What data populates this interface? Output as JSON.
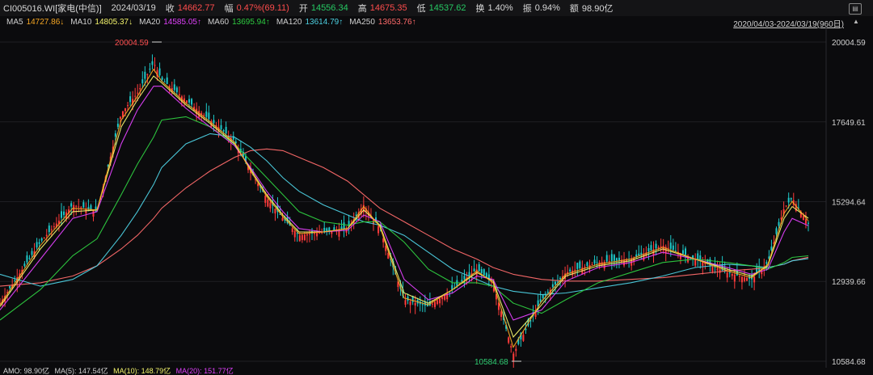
{
  "header": {
    "code": "CI005016.WI[家电(中信)]",
    "date": "2024/03/19",
    "close_label": "收",
    "close_value": "14662.77",
    "change_label": "幅",
    "change_value": "0.47%(69.11)",
    "open_label": "开",
    "open_value": "14556.34",
    "high_label": "高",
    "high_value": "14675.35",
    "low_label": "低",
    "low_value": "14537.62",
    "turnover_label": "换",
    "turnover_value": "1.40%",
    "amplitude_label": "振",
    "amplitude_value": "0.94%",
    "amount_label": "额",
    "amount_value": "98.90亿"
  },
  "ma_bar": {
    "ma5": {
      "label": "MA5",
      "value": "14727.86↓",
      "color": "#f5a623"
    },
    "ma10": {
      "label": "MA10",
      "value": "14805.37↓",
      "color": "#f2f26b"
    },
    "ma20": {
      "label": "MA20",
      "value": "14585.05↑",
      "color": "#e040fb"
    },
    "ma60": {
      "label": "MA60",
      "value": "13695.94↑",
      "color": "#2ecc40"
    },
    "ma120": {
      "label": "MA120",
      "value": "13614.79↑",
      "color": "#4dd0e1"
    },
    "ma250": {
      "label": "MA250",
      "value": "13653.76↑",
      "color": "#ff6b6b"
    },
    "range": "2020/04/03-2024/03/19(960日)"
  },
  "footer": {
    "amo": "AMO: 98.90亿",
    "ma5": "MA(5): 147.54亿",
    "ma10": "MA(10): 148.79亿",
    "ma20": "MA(20): 151.77亿"
  },
  "icons": {
    "top_right": "table-icon",
    "collapse": "collapse-arrow-icon"
  },
  "chart_data": {
    "type": "line",
    "title": "",
    "x_range": [
      "2020/04/03",
      "2024/03/19"
    ],
    "ylim": [
      10584.68,
      20004.59
    ],
    "y_ticks": [
      "20004.59",
      "17649.61",
      "15294.64",
      "12939.66",
      "10584.68"
    ],
    "annotations": [
      {
        "text": "20004.59",
        "kind": "max",
        "x_fraction": 0.19
      },
      {
        "text": "10584.68",
        "kind": "min",
        "x_fraction": 0.635
      }
    ],
    "x_points": [
      0,
      0.05,
      0.09,
      0.12,
      0.15,
      0.17,
      0.19,
      0.2,
      0.23,
      0.26,
      0.29,
      0.31,
      0.33,
      0.35,
      0.37,
      0.4,
      0.43,
      0.45,
      0.47,
      0.5,
      0.53,
      0.56,
      0.59,
      0.61,
      0.635,
      0.67,
      0.7,
      0.74,
      0.78,
      0.82,
      0.86,
      0.9,
      0.93,
      0.95,
      0.97,
      0.98,
      1.0
    ],
    "close": [
      12300,
      14100,
      15200,
      15000,
      17900,
      18500,
      19400,
      18900,
      18300,
      17700,
      17100,
      16200,
      15400,
      14800,
      14300,
      14400,
      14500,
      15200,
      14500,
      12400,
      12200,
      12700,
      13300,
      12900,
      10800,
      12400,
      13200,
      13500,
      13600,
      14000,
      13600,
      13200,
      13000,
      13500,
      15100,
      15400,
      14662.77
    ],
    "series": [
      {
        "name": "MA5",
        "color": "#f5a623",
        "values": [
          12250,
          14000,
          15100,
          15050,
          17700,
          18400,
          19200,
          18850,
          18200,
          17650,
          17050,
          16200,
          15450,
          14850,
          14350,
          14400,
          14500,
          15150,
          14550,
          12450,
          12250,
          12700,
          13250,
          12900,
          11000,
          12350,
          13150,
          13450,
          13600,
          13950,
          13600,
          13250,
          13050,
          13450,
          14950,
          15300,
          14727.86
        ]
      },
      {
        "name": "MA10",
        "color": "#f2f26b",
        "values": [
          12200,
          13900,
          15000,
          15050,
          17500,
          18300,
          19000,
          18800,
          18150,
          17600,
          17000,
          16250,
          15500,
          14900,
          14400,
          14400,
          14500,
          15050,
          14600,
          12600,
          12300,
          12700,
          13200,
          12950,
          11300,
          12250,
          13100,
          13400,
          13550,
          13900,
          13600,
          13300,
          13100,
          13400,
          14800,
          15150,
          14805.37
        ]
      },
      {
        "name": "MA20",
        "color": "#e040fb",
        "values": [
          12100,
          13600,
          14800,
          15000,
          17000,
          18000,
          18700,
          18700,
          18050,
          17500,
          16950,
          16300,
          15600,
          15000,
          14500,
          14400,
          14450,
          14900,
          14700,
          13000,
          12400,
          12600,
          13100,
          13000,
          11800,
          12100,
          12950,
          13350,
          13500,
          13800,
          13600,
          13350,
          13150,
          13300,
          14400,
          14800,
          14585.05
        ]
      },
      {
        "name": "MA60",
        "color": "#2ecc40",
        "values": [
          11800,
          12700,
          13700,
          14200,
          15500,
          16400,
          17200,
          17700,
          17800,
          17500,
          17000,
          16500,
          16000,
          15500,
          15000,
          14700,
          14600,
          14700,
          14700,
          14100,
          13300,
          12900,
          12900,
          12800,
          12300,
          12000,
          12400,
          12900,
          13200,
          13500,
          13600,
          13500,
          13400,
          13300,
          13500,
          13650,
          13695.94
        ]
      },
      {
        "name": "MA120",
        "color": "#4dd0e1",
        "values": [
          13150,
          12800,
          13000,
          13400,
          14300,
          15000,
          15800,
          16300,
          17000,
          17300,
          17200,
          16900,
          16500,
          16000,
          15600,
          15200,
          14900,
          14700,
          14600,
          14300,
          13800,
          13300,
          13000,
          12800,
          12650,
          12550,
          12600,
          12750,
          12900,
          13100,
          13350,
          13450,
          13400,
          13350,
          13450,
          13550,
          13614.79
        ]
      },
      {
        "name": "MA250",
        "color": "#ff6b6b",
        "values": [
          12800,
          12900,
          13100,
          13400,
          13900,
          14300,
          14800,
          15100,
          15700,
          16200,
          16600,
          16800,
          16850,
          16800,
          16600,
          16300,
          15900,
          15500,
          15100,
          14700,
          14300,
          13900,
          13600,
          13350,
          13150,
          13000,
          12950,
          12950,
          13000,
          13050,
          13150,
          13250,
          13300,
          13350,
          13450,
          13550,
          13653.76
        ]
      }
    ]
  }
}
